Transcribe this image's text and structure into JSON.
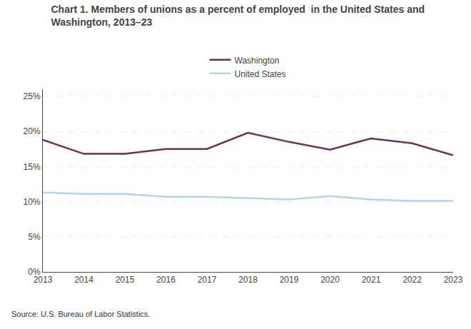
{
  "chart_data": {
    "type": "line",
    "title": "Chart 1. Members of unions as a percent of employed  in the United States and\nWashington, 2013–23",
    "x": [
      2013,
      2014,
      2015,
      2016,
      2017,
      2018,
      2019,
      2020,
      2021,
      2022,
      2023
    ],
    "series": [
      {
        "name": "Washington",
        "color": "#722F57",
        "values": [
          18.8,
          16.8,
          16.8,
          17.5,
          17.5,
          19.8,
          18.5,
          17.4,
          19.0,
          18.3,
          16.6
        ]
      },
      {
        "name": "United States",
        "color": "#ADD8E6",
        "values": [
          11.3,
          11.1,
          11.1,
          10.7,
          10.7,
          10.5,
          10.3,
          10.8,
          10.3,
          10.1,
          10.1
        ]
      }
    ],
    "xlim": [
      2013,
      2023
    ],
    "xticks": [
      2013,
      2014,
      2015,
      2016,
      2017,
      2018,
      2019,
      2020,
      2021,
      2022,
      2023
    ],
    "ylim": [
      0,
      26
    ],
    "yticks": [
      {
        "value": 0,
        "label": "0%"
      },
      {
        "value": 5,
        "label": "5%"
      },
      {
        "value": 10,
        "label": "10%"
      },
      {
        "value": 15,
        "label": "15%"
      },
      {
        "value": 20,
        "label": "20%"
      },
      {
        "value": 25,
        "label": "25%"
      }
    ],
    "grid": "y",
    "legend": "top",
    "annotations": [
      "Source: U.S. Bureau of Labor Statistics."
    ]
  }
}
